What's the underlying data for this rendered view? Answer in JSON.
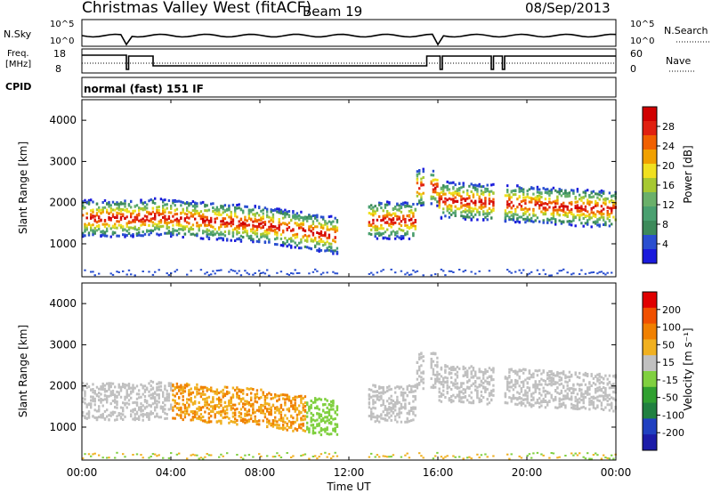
{
  "header": {
    "station": "Christmas Valley West (fitACF)",
    "beam": "Beam 19",
    "date": "08/Sep/2013"
  },
  "top_panels": {
    "nsky_label": "N.Sky",
    "nsky_ticks_left": [
      "10^5",
      "10^0"
    ],
    "nsky_ticks_right": [
      "10^5",
      "10^0"
    ],
    "nsearch_label": "N.Search",
    "freq_label_1": "Freq.",
    "freq_label_2": "[MHz]",
    "freq_ticks": [
      "18",
      "8"
    ],
    "nave_ticks": [
      "60",
      "0"
    ],
    "nave_label": "Nave",
    "cpid_label": "CPID",
    "cpid_text": "normal (fast) 151 IF"
  },
  "panels": {
    "power": {
      "ylabel": "Slant Range [km]",
      "yticks": [
        1000,
        2000,
        3000,
        4000
      ],
      "ylim": [
        200,
        4500
      ],
      "colorbar_label": "Power [dB]",
      "colorbar_ticks": [
        "28",
        "24",
        "20",
        "16",
        "12",
        "8",
        "4"
      ],
      "colors": [
        "#1a1adc",
        "#2a4fd0",
        "#3d8a5a",
        "#4aa070",
        "#6ab06a",
        "#a6c832",
        "#f0e020",
        "#f0a000",
        "#f06000",
        "#e02010",
        "#d00000"
      ]
    },
    "velocity": {
      "ylabel": "Slant Range [km]",
      "yticks": [
        1000,
        2000,
        3000,
        4000
      ],
      "ylim": [
        200,
        4500
      ],
      "colorbar_label": "Velocity [m s⁻¹]",
      "colorbar_ticks": [
        "200",
        "100",
        "50",
        "15",
        "-15",
        "-50",
        "-100",
        "-200"
      ],
      "colors": [
        "#1c1ca8",
        "#2040c0",
        "#208040",
        "#30a030",
        "#80d040",
        "#c0c0c0",
        "#f0b020",
        "#f08000",
        "#f05000",
        "#e00000"
      ]
    }
  },
  "xaxis": {
    "label": "Time UT",
    "ticks": [
      "00:00",
      "04:00",
      "08:00",
      "12:00",
      "16:00",
      "20:00",
      "00:00"
    ],
    "range_hours": [
      0,
      24
    ]
  }
}
